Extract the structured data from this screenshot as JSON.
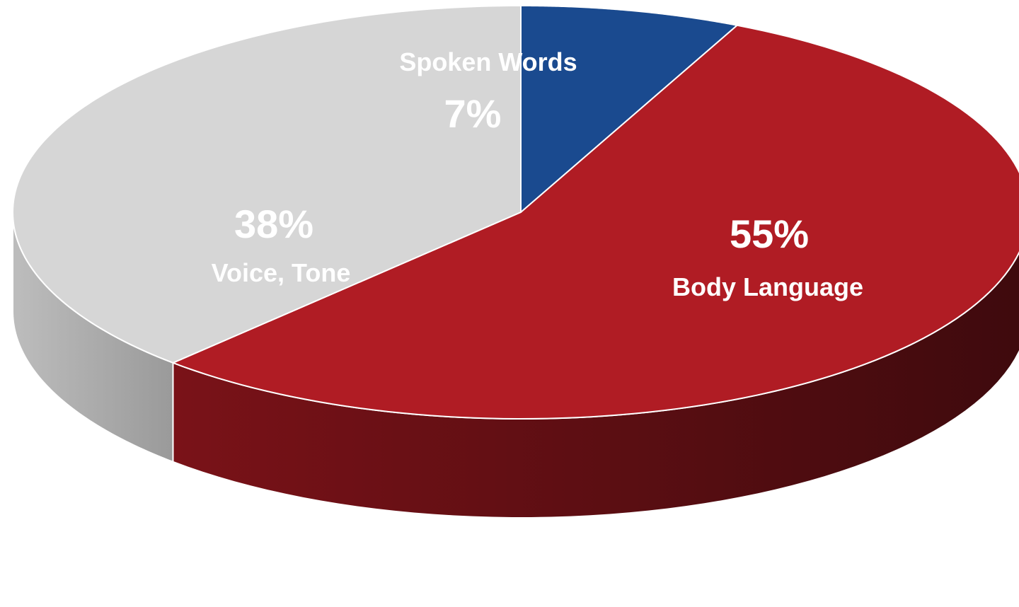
{
  "chart_data": {
    "type": "pie",
    "style": "3d",
    "slices": [
      {
        "category": "Spoken Words",
        "value": 7,
        "value_label": "7%",
        "color": "#1a4a8f",
        "side_color": "#0f2d57",
        "label_color": "#ffffff"
      },
      {
        "category": "Body Language",
        "value": 55,
        "value_label": "55%",
        "color": "#b01c24",
        "side_color": "#5a0e13",
        "label_color": "#ffffff"
      },
      {
        "category": "Voice, Tone",
        "value": 38,
        "value_label": "38%",
        "color": "#d6d6d6",
        "side_color": "#a6a6a6",
        "label_color": "#ffffff"
      }
    ]
  }
}
